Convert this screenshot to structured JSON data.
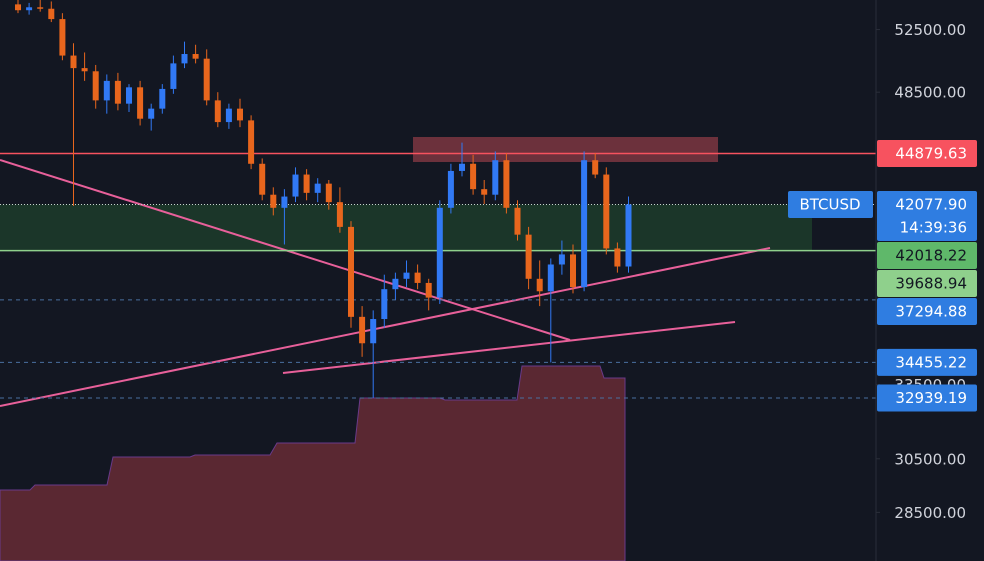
{
  "chart_data": {
    "type": "candlestick",
    "symbol": "BTCUSD",
    "countdown": "14:39:36",
    "log_scale": true,
    "ylim": [
      26800,
      54500
    ],
    "yticks": [
      {
        "value": 52500,
        "label": "52500.00"
      },
      {
        "value": 48500,
        "label": "48500.00"
      },
      {
        "value": 33500,
        "label": "33500.00"
      },
      {
        "value": 30500,
        "label": "30500.00"
      },
      {
        "value": 28500,
        "label": "28500.00"
      }
    ],
    "up_color": "#3179f5",
    "down_color": "#e8661d",
    "candles": {
      "open": [
        54200,
        53800,
        54000,
        53900,
        53200,
        50800,
        50000,
        49800,
        48000,
        49200,
        47800,
        48800,
        46900,
        47500,
        48700,
        50300,
        50900,
        50600,
        48000,
        46700,
        47500,
        46800,
        44300,
        42600,
        41900,
        42500,
        43700,
        42700,
        43200,
        42200,
        40900,
        36500,
        35300,
        36400,
        37800,
        38300,
        38600,
        38100,
        37400,
        41900,
        43900,
        44300,
        42900,
        42600,
        44500,
        41900,
        40500,
        38300,
        37700,
        39000,
        39500,
        37900,
        44500,
        43700,
        39800,
        38900
      ],
      "high": [
        54500,
        54300,
        54500,
        54400,
        53600,
        51600,
        51000,
        50200,
        49600,
        49700,
        49000,
        49200,
        47800,
        49000,
        50800,
        51700,
        51500,
        51200,
        48500,
        47800,
        48100,
        47100,
        44600,
        43000,
        42900,
        44100,
        44000,
        43500,
        43400,
        43000,
        41200,
        37000,
        36800,
        38500,
        38600,
        39200,
        39000,
        38300,
        42300,
        44300,
        45500,
        44800,
        43400,
        45000,
        44900,
        42300,
        40900,
        39200,
        39300,
        40200,
        40000,
        45000,
        44900,
        44100,
        40100,
        42500
      ],
      "low": [
        53600,
        53500,
        53700,
        53000,
        50500,
        42000,
        49200,
        47500,
        47200,
        47400,
        47300,
        46500,
        46200,
        47200,
        48400,
        50000,
        50300,
        47700,
        46400,
        46300,
        46400,
        44000,
        42300,
        41500,
        40000,
        42200,
        42300,
        42200,
        41800,
        40600,
        36000,
        34700,
        32939.19,
        36000,
        37300,
        37900,
        37800,
        36800,
        37100,
        41600,
        43600,
        42600,
        42100,
        42300,
        41600,
        40200,
        37800,
        37000,
        34455.22,
        38500,
        37600,
        37700,
        43500,
        39500,
        38600,
        38600
      ],
      "close": [
        53800,
        54000,
        53900,
        53200,
        50800,
        50000,
        49800,
        48000,
        49200,
        47800,
        48800,
        46900,
        47500,
        48700,
        50300,
        50900,
        50600,
        48000,
        46700,
        47500,
        46800,
        44300,
        42600,
        41900,
        42500,
        43700,
        42700,
        43200,
        42200,
        40900,
        36500,
        35300,
        36400,
        37800,
        38300,
        38600,
        38100,
        37400,
        41900,
        43900,
        44300,
        42900,
        42600,
        44500,
        41900,
        40500,
        38300,
        37700,
        39000,
        39500,
        37900,
        44500,
        43700,
        39800,
        38900,
        42077.9
      ]
    },
    "levels": [
      {
        "value": 44879.63,
        "color": "#f7525f",
        "style": "solid"
      },
      {
        "value": 42077.9,
        "label": "42077.90",
        "color": "#2f7de1",
        "style": "dotted"
      },
      {
        "value": 42018.22,
        "color": "#5fb86a",
        "style": "none"
      },
      {
        "value": 39688.94,
        "color": "#8fd08c",
        "style": "solid"
      },
      {
        "value": 37294.88,
        "color": "#2f7de1",
        "style": "dashed"
      },
      {
        "value": 34455.22,
        "color": "#2f7de1",
        "style": "dashed"
      },
      {
        "value": 32939.19,
        "color": "#2f7de1",
        "style": "dashed"
      }
    ]
  }
}
